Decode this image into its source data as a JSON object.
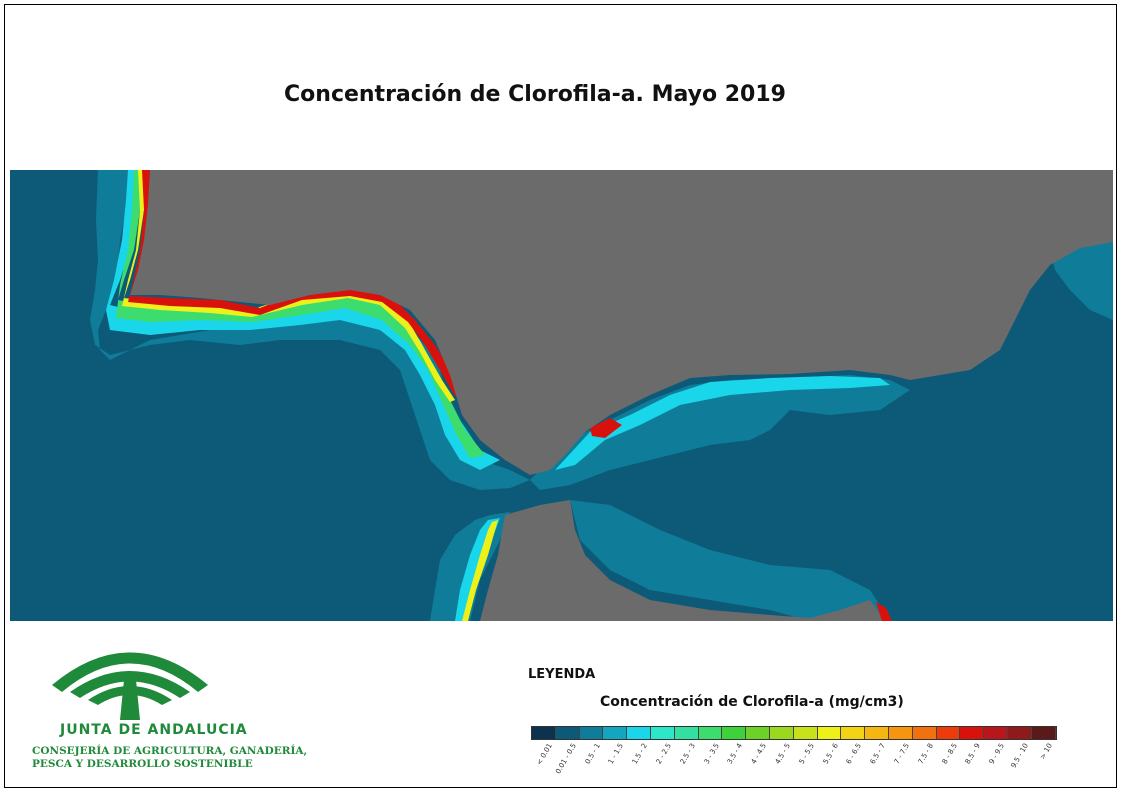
{
  "title": "Concentración de Clorofila-a. Mayo 2019",
  "legend": {
    "heading": "LEYENDA",
    "subtitle": "Concentración de Clorofila-a (mg/cm3)",
    "classes": [
      {
        "label": "< 0.01",
        "color": "#0b3350"
      },
      {
        "label": "0.01 - 0.5",
        "color": "#0d5a78"
      },
      {
        "label": "0.5 - 1",
        "color": "#0f7d99"
      },
      {
        "label": "1 - 1.5",
        "color": "#12a6c0"
      },
      {
        "label": "1.5 - 2",
        "color": "#19d6ea"
      },
      {
        "label": "2 - 2.5",
        "color": "#2ee6c8"
      },
      {
        "label": "2.5 - 3",
        "color": "#33e0a0"
      },
      {
        "label": "3 - 3.5",
        "color": "#3ddc6e"
      },
      {
        "label": "3.5 - 4",
        "color": "#3fd13a"
      },
      {
        "label": "4 - 4.5",
        "color": "#6cd22a"
      },
      {
        "label": "4.5 - 5",
        "color": "#9ad91e"
      },
      {
        "label": "5 - 5.5",
        "color": "#c7e21a"
      },
      {
        "label": "5.5 - 6",
        "color": "#eef01a"
      },
      {
        "label": "6 - 6.5",
        "color": "#f4d314"
      },
      {
        "label": "6.5 - 7",
        "color": "#f6b611"
      },
      {
        "label": "7 - 7.5",
        "color": "#f6950f"
      },
      {
        "label": "7.5 - 8",
        "color": "#f3700e"
      },
      {
        "label": "8 - 8.5",
        "color": "#ee3b0c"
      },
      {
        "label": "8.5 - 9",
        "color": "#d9110d"
      },
      {
        "label": "9 - 9.5",
        "color": "#b8161a"
      },
      {
        "label": "9.5 - 10",
        "color": "#8f1a1c"
      },
      {
        "label": "> 10",
        "color": "#5a1a1a"
      }
    ]
  },
  "logo": {
    "name": "JUNTA DE ANDALUCIA",
    "subline1": "CONSEJERÍA DE AGRICULTURA, GANADERÍA,",
    "subline2": "PESCA Y DESARROLLO SOSTENIBLE",
    "color": "#1f8a3a"
  },
  "map": {
    "sea_color": "#0d5a78",
    "land_color": "#6b6b6b"
  }
}
